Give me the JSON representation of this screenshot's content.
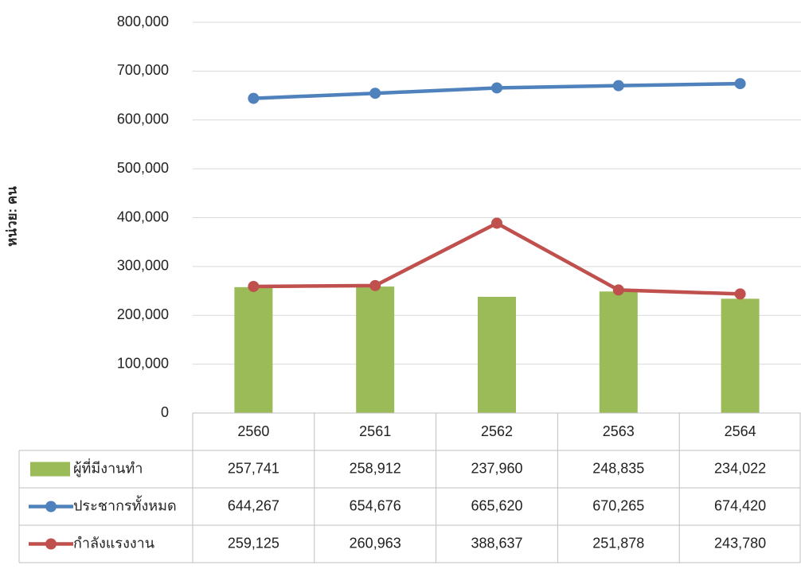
{
  "chart_data": {
    "type": "combo",
    "y_axis_label": "หน่วย: คน",
    "categories": [
      "2560",
      "2561",
      "2562",
      "2563",
      "2564"
    ],
    "series": [
      {
        "name": "ผู้ที่มีงานทำ",
        "type": "bar",
        "color": "#9bbb59",
        "values": [
          257741,
          258912,
          237960,
          248835,
          234022
        ],
        "value_labels": [
          "257,741",
          "258,912",
          "237,960",
          "248,835",
          "234,022"
        ]
      },
      {
        "name": "ประชากรทั้งหมด",
        "type": "line",
        "color": "#4f81bd",
        "values": [
          644267,
          654676,
          665620,
          670265,
          674420
        ],
        "value_labels": [
          "644,267",
          "654,676",
          "665,620",
          "670,265",
          "674,420"
        ]
      },
      {
        "name": "กำลังแรงงาน",
        "type": "line",
        "color": "#c0504d",
        "values": [
          259125,
          260963,
          388637,
          251878,
          243780
        ],
        "value_labels": [
          "259,125",
          "260,963",
          "388,637",
          "251,878",
          "243,780"
        ]
      }
    ],
    "ylim": [
      0,
      800000
    ],
    "yticks": [
      0,
      {
        "value": 100000,
        "label": "100,000"
      },
      {
        "value": 200000,
        "label": "200,000"
      },
      {
        "value": 300000,
        "label": "300,000"
      },
      {
        "value": 400000,
        "label": "400,000"
      },
      {
        "value": 500000,
        "label": "500,000"
      },
      {
        "value": 600000,
        "label": "600,000"
      },
      {
        "value": 700000,
        "label": "700,000"
      },
      {
        "value": 800000,
        "label": "800,000"
      }
    ],
    "grid": true
  }
}
